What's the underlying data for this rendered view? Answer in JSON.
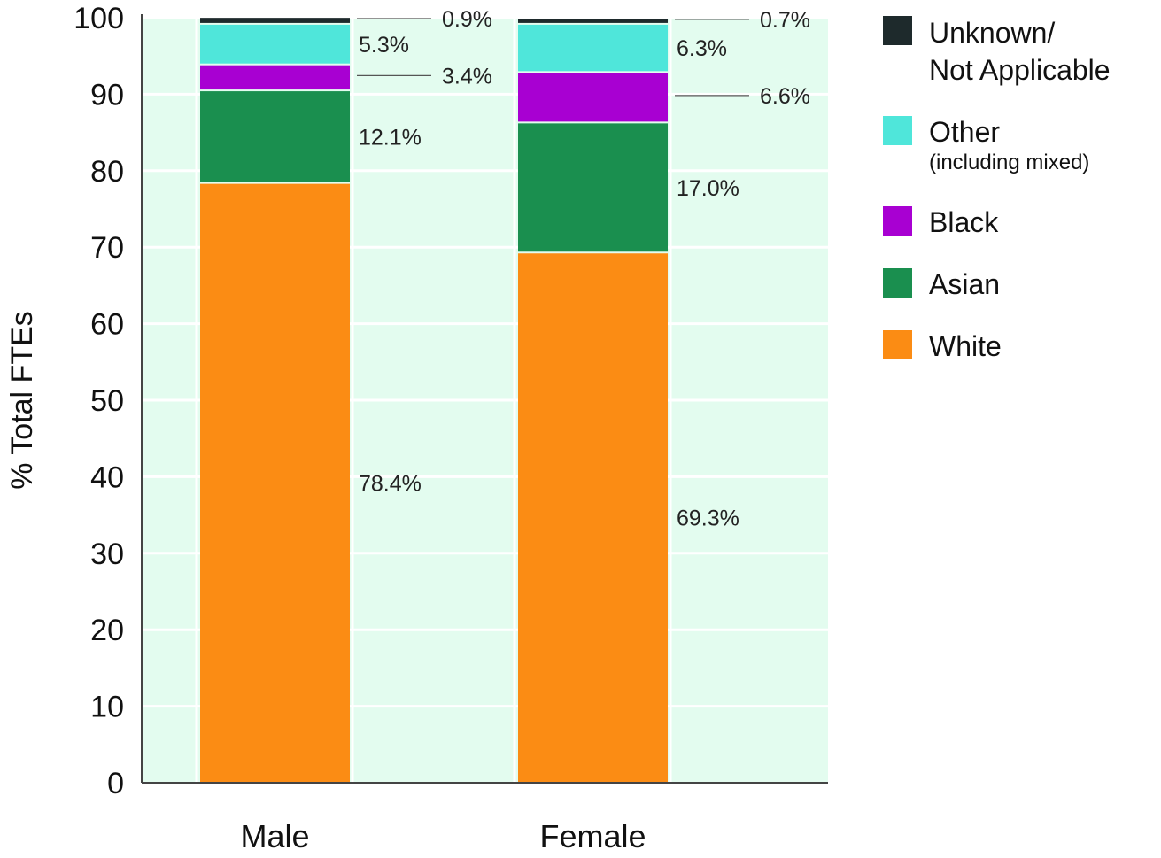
{
  "chart_data": {
    "type": "bar",
    "stacked": true,
    "categories": [
      "Male",
      "Female"
    ],
    "ylabel": "% Total FTEs",
    "ylim": [
      0,
      100
    ],
    "yticks": [
      0,
      10,
      20,
      30,
      40,
      50,
      60,
      70,
      80,
      90,
      100
    ],
    "grid": true,
    "legend_position": "right",
    "series": [
      {
        "name": "White",
        "color": "#fb8c14",
        "values": [
          78.4,
          69.3
        ],
        "labels": [
          "78.4%",
          "69.3%"
        ],
        "leader": [
          false,
          false
        ]
      },
      {
        "name": "Asian",
        "color": "#1a8f4f",
        "values": [
          12.1,
          17.0
        ],
        "labels": [
          "12.1%",
          "17.0%"
        ],
        "leader": [
          false,
          false
        ]
      },
      {
        "name": "Black",
        "color": "#a800d2",
        "values": [
          3.4,
          6.6
        ],
        "labels": [
          "3.4%",
          "6.6%"
        ],
        "leader": [
          true,
          true
        ]
      },
      {
        "name": "Other",
        "sub": "(including mixed)",
        "color": "#4fe6da",
        "values": [
          5.3,
          6.3
        ],
        "labels": [
          "5.3%",
          "6.3%"
        ],
        "leader": [
          false,
          false
        ]
      },
      {
        "name": "Unknown/ Not Applicable",
        "name_lines": [
          "Unknown/",
          "Not Applicable"
        ],
        "color": "#1e2a2c",
        "values": [
          0.9,
          0.7
        ],
        "labels": [
          "0.9%",
          "0.7%"
        ],
        "leader": [
          true,
          true
        ]
      }
    ],
    "plot_background": "#e3fcef"
  }
}
